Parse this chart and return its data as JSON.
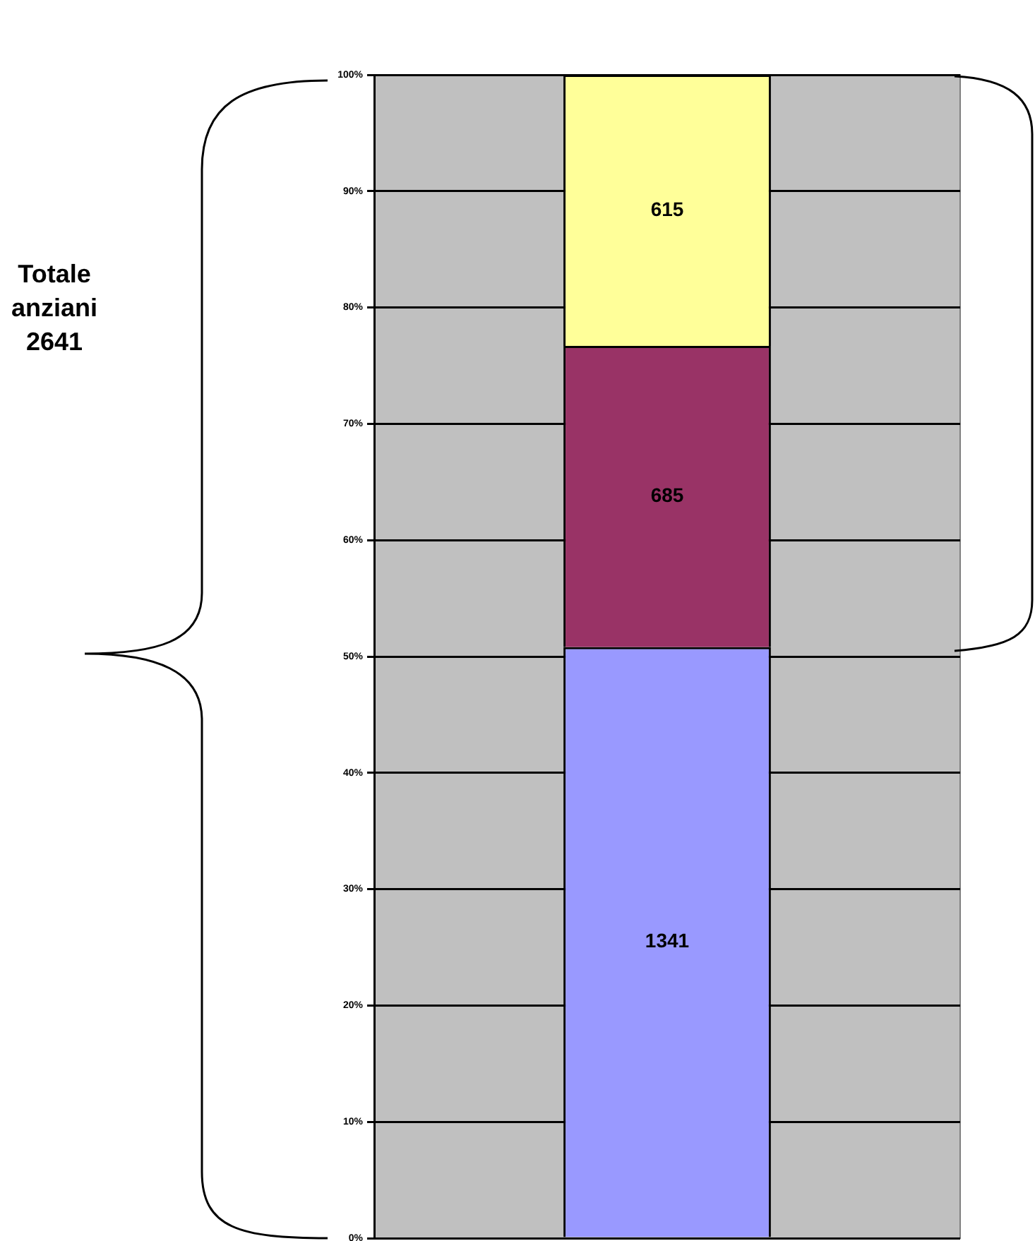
{
  "chart_data": {
    "type": "bar",
    "stacked": true,
    "categories": [
      null
    ],
    "series": [
      {
        "color": "#9999ff",
        "values": [
          50.8
        ]
      },
      {
        "color": "#993366",
        "values": [
          25.9
        ]
      },
      {
        "color": "#ffff99",
        "values": [
          23.3
        ]
      }
    ],
    "ylim": [
      0,
      100
    ],
    "yticks": [
      {
        "value": 0,
        "label": "0%"
      },
      {
        "value": 10,
        "label": "10%"
      },
      {
        "value": 20,
        "label": "20%"
      },
      {
        "value": 30,
        "label": "30%"
      },
      {
        "value": 40,
        "label": "40%"
      },
      {
        "value": 50,
        "label": "50%"
      },
      {
        "value": 60,
        "label": "60%"
      },
      {
        "value": 70,
        "label": "70%"
      },
      {
        "value": 80,
        "label": "80%"
      },
      {
        "value": 90,
        "label": "90%"
      },
      {
        "value": 100,
        "label": "100%"
      }
    ],
    "grid": "y",
    "legend": false,
    "tick_labels": "y",
    "annotations": [
      "Totale\nanziani\n2641",
      "1341",
      "685",
      "615"
    ]
  }
}
